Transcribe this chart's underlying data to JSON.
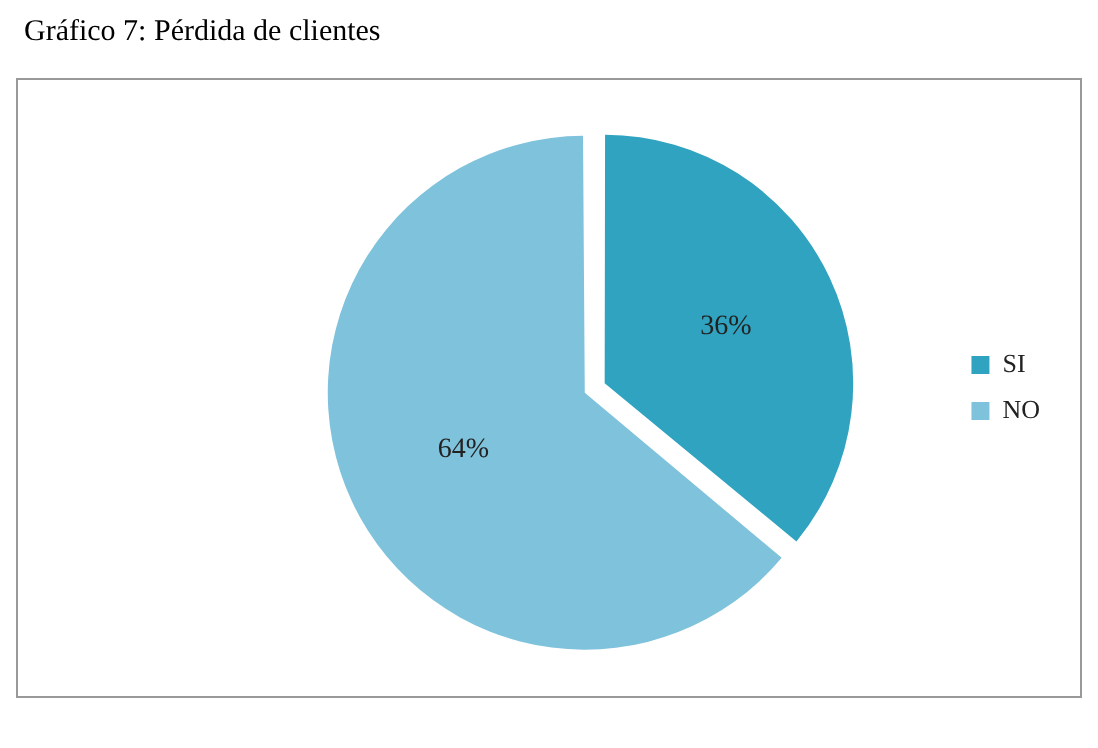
{
  "chart_data": {
    "type": "pie",
    "title": "Gráfico 7: Pérdida de clientes",
    "categories": [
      "SI",
      "NO"
    ],
    "values": [
      36,
      64
    ],
    "colors": [
      "#2fa3c0",
      "#7fc2dc"
    ],
    "value_labels": [
      "36%",
      "64%"
    ],
    "legend": "right"
  }
}
